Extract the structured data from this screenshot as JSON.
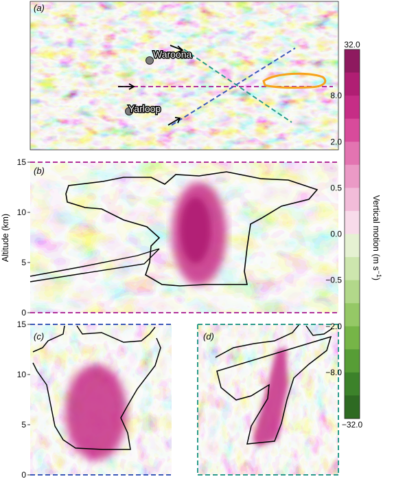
{
  "chart_data": [
    {
      "type": "heatmap",
      "panel_label": "(a)",
      "view": "plan",
      "places": [
        {
          "name": "Waroona"
        },
        {
          "name": "Yarloop"
        }
      ],
      "cross_section_lines": [
        {
          "color": "#b0309a",
          "panel": "(b)",
          "orientation": "west-east"
        },
        {
          "color": "#3a58b8",
          "panel": "(c)",
          "orientation": "southwest-northeast"
        },
        {
          "color": "#2a9a8a",
          "panel": "(d)",
          "orientation": "northwest-southeast"
        }
      ],
      "fire_perimeter_color": "#f7a21b"
    },
    {
      "type": "heatmap",
      "panel_label": "(b)",
      "view": "cross-section",
      "ylabel": "Altitude (km)",
      "yticks": [
        "15",
        "10",
        "5",
        "0"
      ],
      "ylim": [
        0,
        15
      ],
      "border_color": "#b0309a"
    },
    {
      "type": "heatmap",
      "panel_label": "(c)",
      "view": "cross-section",
      "yticks": [
        "15",
        "10",
        "5",
        "0"
      ],
      "ylim": [
        0,
        15
      ],
      "border_color": "#3a58b8"
    },
    {
      "type": "heatmap",
      "panel_label": "(d)",
      "view": "cross-section",
      "ylim": [
        0,
        15
      ],
      "border_color": "#2a9a8a"
    }
  ],
  "colorbar": {
    "label_main": "Vertical motion (m s",
    "label_sup": "−1",
    "label_end": ")",
    "tick_labels": [
      "32.0",
      "8.0",
      "2.0",
      "0.5",
      "0.0",
      "−0.5",
      "−2.0",
      "−8.0",
      "−32.0"
    ],
    "levels": [
      32,
      16,
      8,
      4,
      2,
      1,
      0.5,
      0.25,
      0,
      -0.25,
      -0.5,
      -1,
      -2,
      -4,
      -8,
      -16,
      -32
    ],
    "colors": [
      "#8e1a5f",
      "#b01e73",
      "#c62d86",
      "#d84b9b",
      "#e374b1",
      "#eb9ac6",
      "#f2bcd9",
      "#f8dbea",
      "#e5f1d2",
      "#cde6ae",
      "#b2d88a",
      "#95c866",
      "#76b547",
      "#579d36",
      "#3c822a",
      "#2e6a22"
    ]
  }
}
